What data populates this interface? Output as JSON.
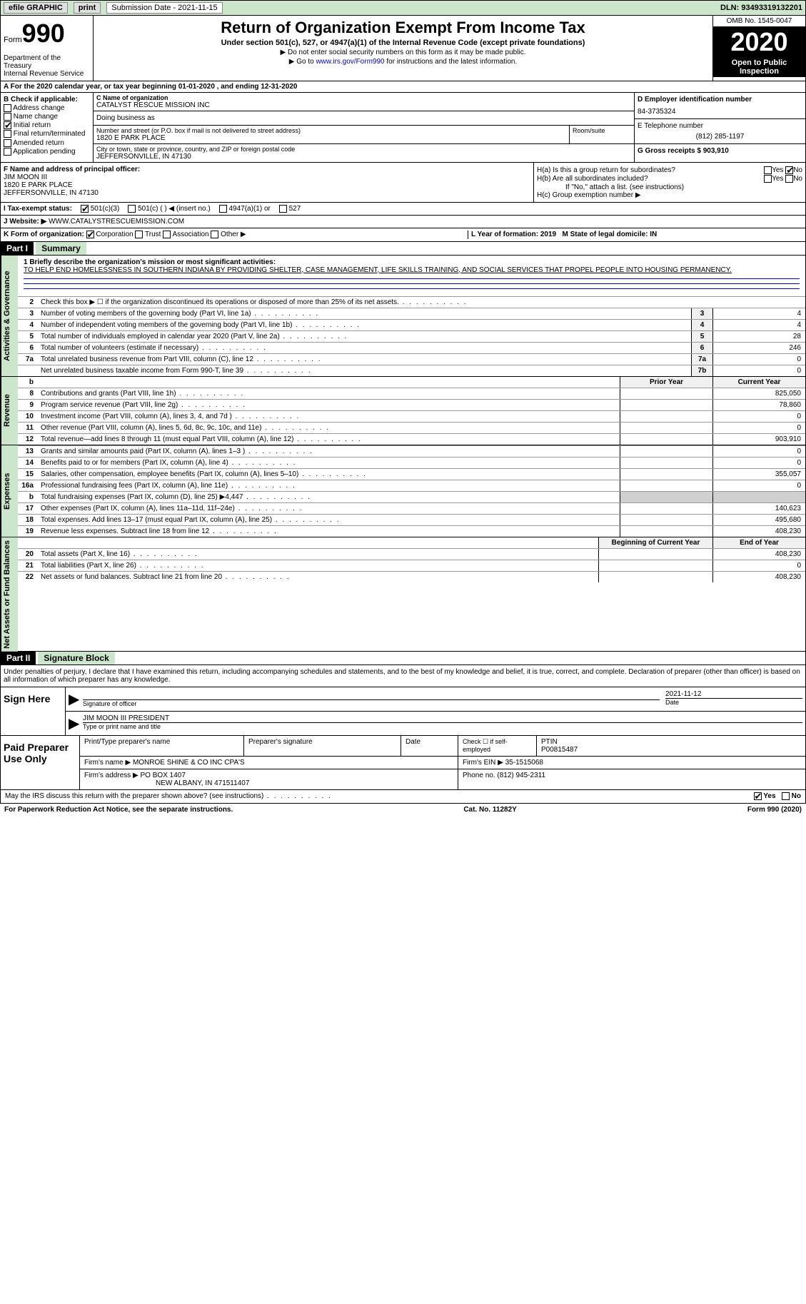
{
  "topbar": {
    "efile": "efile GRAPHIC",
    "print": "print",
    "sub_label": "Submission Date - 2021-11-15",
    "dln_label": "DLN: 93493319132201"
  },
  "header": {
    "form_label": "Form",
    "form_num": "990",
    "dept": "Department of the Treasury\nInternal Revenue Service",
    "title": "Return of Organization Exempt From Income Tax",
    "subtitle": "Under section 501(c), 527, or 4947(a)(1) of the Internal Revenue Code (except private foundations)",
    "note1": "▶ Do not enter social security numbers on this form as it may be made public.",
    "note2_pre": "▶ Go to ",
    "note2_link": "www.irs.gov/Form990",
    "note2_post": " for instructions and the latest information.",
    "omb": "OMB No. 1545-0047",
    "year": "2020",
    "open": "Open to Public Inspection"
  },
  "section_a": "A For the 2020 calendar year, or tax year beginning 01-01-2020   , and ending 12-31-2020",
  "col_b": {
    "title": "B Check if applicable:",
    "items": [
      "Address change",
      "Name change",
      "Initial return",
      "Final return/terminated",
      "Amended return",
      "Application pending"
    ],
    "checked_idx": 2
  },
  "name": {
    "lbl": "C Name of organization",
    "val": "CATALYST RESCUE MISSION INC",
    "dba_lbl": "Doing business as",
    "addr_lbl": "Number and street (or P.O. box if mail is not delivered to street address)",
    "addr": "1820 E PARK PLACE",
    "room_lbl": "Room/suite",
    "city_lbl": "City or town, state or province, country, and ZIP or foreign postal code",
    "city": "JEFFERSONVILLE, IN  47130"
  },
  "right": {
    "ein_lbl": "D Employer identification number",
    "ein": "84-3735324",
    "tel_lbl": "E Telephone number",
    "tel": "(812) 285-1197",
    "gross_lbl": "G Gross receipts $ 903,910"
  },
  "officer": {
    "lbl": "F Name and address of principal officer:",
    "name": "JIM MOON III",
    "addr1": "1820 E PARK PLACE",
    "addr2": "JEFFERSONVILLE, IN  47130"
  },
  "h": {
    "a": "H(a)  Is this a group return for subordinates?",
    "b": "H(b)  Are all subordinates included?",
    "note": "If \"No,\" attach a list. (see instructions)",
    "c": "H(c)  Group exemption number ▶",
    "yes": "Yes",
    "no": "No"
  },
  "status": {
    "lbl": "I   Tax-exempt status:",
    "c3": "501(c)(3)",
    "c": "501(c) (  ) ◀ (insert no.)",
    "a1": "4947(a)(1) or",
    "s527": "527"
  },
  "website": {
    "lbl": "J   Website: ▶",
    "val": "WWW.CATALYSTRESCUEMISSION.COM"
  },
  "k": {
    "lbl": "K Form of organization:",
    "corp": "Corporation",
    "trust": "Trust",
    "assoc": "Association",
    "other": "Other ▶",
    "l": "L Year of formation: 2019",
    "m": "M State of legal domicile: IN"
  },
  "parts": {
    "p1": "Part I",
    "p1_title": "Summary",
    "p2": "Part II",
    "p2_title": "Signature Block"
  },
  "vtabs": {
    "gov": "Activities & Governance",
    "rev": "Revenue",
    "exp": "Expenses",
    "net": "Net Assets or Fund Balances"
  },
  "mission": {
    "lbl": "1   Briefly describe the organization's mission or most significant activities:",
    "text": "TO HELP END HOMELESSNESS IN SOUTHERN INDIANA BY PROVIDING SHELTER, CASE MANAGEMENT, LIFE SKILLS TRAINING, AND SOCIAL SERVICES THAT PROPEL PEOPLE INTO HOUSING PERMANENCY."
  },
  "gov_lines": [
    {
      "n": "2",
      "d": "Check this box ▶ ☐  if the organization discontinued its operations or disposed of more than 25% of its net assets.",
      "box": "",
      "v": ""
    },
    {
      "n": "3",
      "d": "Number of voting members of the governing body (Part VI, line 1a)",
      "box": "3",
      "v": "4"
    },
    {
      "n": "4",
      "d": "Number of independent voting members of the governing body (Part VI, line 1b)",
      "box": "4",
      "v": "4"
    },
    {
      "n": "5",
      "d": "Total number of individuals employed in calendar year 2020 (Part V, line 2a)",
      "box": "5",
      "v": "28"
    },
    {
      "n": "6",
      "d": "Total number of volunteers (estimate if necessary)",
      "box": "6",
      "v": "246"
    },
    {
      "n": "7a",
      "d": "Total unrelated business revenue from Part VIII, column (C), line 12",
      "box": "7a",
      "v": "0"
    },
    {
      "n": "",
      "d": "Net unrelated business taxable income from Form 990-T, line 39",
      "box": "7b",
      "v": "0"
    }
  ],
  "col_hdrs": {
    "prior": "Prior Year",
    "current": "Current Year",
    "begin": "Beginning of Current Year",
    "end": "End of Year"
  },
  "rev_lines": [
    {
      "n": "8",
      "d": "Contributions and grants (Part VIII, line 1h)",
      "p": "",
      "c": "825,050"
    },
    {
      "n": "9",
      "d": "Program service revenue (Part VIII, line 2g)",
      "p": "",
      "c": "78,860"
    },
    {
      "n": "10",
      "d": "Investment income (Part VIII, column (A), lines 3, 4, and 7d )",
      "p": "",
      "c": "0"
    },
    {
      "n": "11",
      "d": "Other revenue (Part VIII, column (A), lines 5, 6d, 8c, 9c, 10c, and 11e)",
      "p": "",
      "c": "0"
    },
    {
      "n": "12",
      "d": "Total revenue—add lines 8 through 11 (must equal Part VIII, column (A), line 12)",
      "p": "",
      "c": "903,910"
    }
  ],
  "exp_lines": [
    {
      "n": "13",
      "d": "Grants and similar amounts paid (Part IX, column (A), lines 1–3 )",
      "p": "",
      "c": "0"
    },
    {
      "n": "14",
      "d": "Benefits paid to or for members (Part IX, column (A), line 4)",
      "p": "",
      "c": "0"
    },
    {
      "n": "15",
      "d": "Salaries, other compensation, employee benefits (Part IX, column (A), lines 5–10)",
      "p": "",
      "c": "355,057"
    },
    {
      "n": "16a",
      "d": "Professional fundraising fees (Part IX, column (A), line 11e)",
      "p": "",
      "c": "0"
    },
    {
      "n": "b",
      "d": "Total fundraising expenses (Part IX, column (D), line 25) ▶4,447",
      "p": "shaded",
      "c": "shaded"
    },
    {
      "n": "17",
      "d": "Other expenses (Part IX, column (A), lines 11a–11d, 11f–24e)",
      "p": "",
      "c": "140,623"
    },
    {
      "n": "18",
      "d": "Total expenses. Add lines 13–17 (must equal Part IX, column (A), line 25)",
      "p": "",
      "c": "495,680"
    },
    {
      "n": "19",
      "d": "Revenue less expenses. Subtract line 18 from line 12",
      "p": "",
      "c": "408,230"
    }
  ],
  "net_lines": [
    {
      "n": "20",
      "d": "Total assets (Part X, line 16)",
      "p": "",
      "c": "408,230"
    },
    {
      "n": "21",
      "d": "Total liabilities (Part X, line 26)",
      "p": "",
      "c": "0"
    },
    {
      "n": "22",
      "d": "Net assets or fund balances. Subtract line 21 from line 20",
      "p": "",
      "c": "408,230"
    }
  ],
  "sig": {
    "decl": "Under penalties of perjury, I declare that I have examined this return, including accompanying schedules and statements, and to the best of my knowledge and belief, it is true, correct, and complete. Declaration of preparer (other than officer) is based on all information of which preparer has any knowledge.",
    "sign_here": "Sign Here",
    "sig_lbl": "Signature of officer",
    "date_lbl": "Date",
    "date": "2021-11-12",
    "name": "JIM MOON III PRESIDENT",
    "name_lbl": "Type or print name and title"
  },
  "prep": {
    "title": "Paid Preparer Use Only",
    "h1": "Print/Type preparer's name",
    "h2": "Preparer's signature",
    "h3": "Date",
    "h4_a": "Check ☐ if self-employed",
    "h4_b": "PTIN",
    "ptin": "P00815487",
    "firm_lbl": "Firm's name    ▶",
    "firm": "MONROE SHINE & CO INC CPA'S",
    "ein_lbl": "Firm's EIN ▶",
    "ein": "35-1515068",
    "addr_lbl": "Firm's address ▶",
    "addr": "PO BOX 1407",
    "addr2": "NEW ALBANY, IN  471511407",
    "phone_lbl": "Phone no.",
    "phone": "(812) 945-2311"
  },
  "bottom": {
    "q": "May the IRS discuss this return with the preparer shown above? (see instructions)",
    "yes": "Yes",
    "no": "No"
  },
  "footer": {
    "l": "For Paperwork Reduction Act Notice, see the separate instructions.",
    "m": "Cat. No. 11282Y",
    "r": "Form 990 (2020)"
  }
}
